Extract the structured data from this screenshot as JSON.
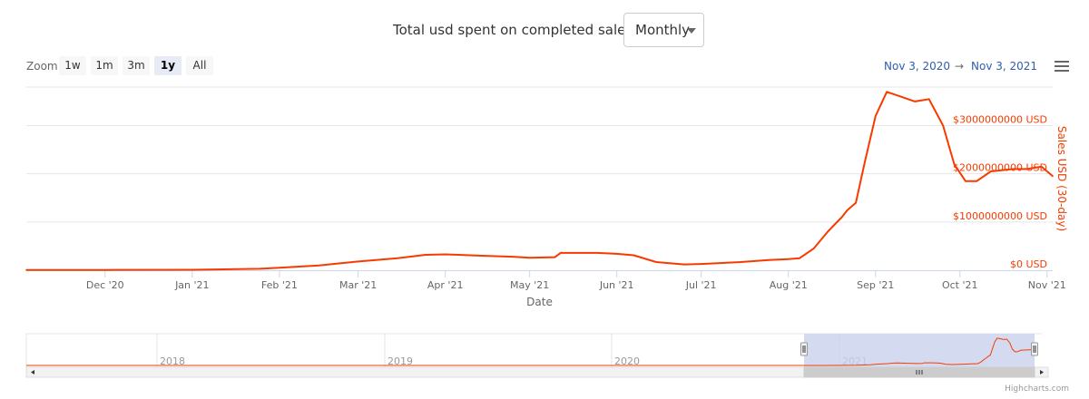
{
  "header": {
    "title": "Total usd spent on completed sales.",
    "period_selected": "Monthly"
  },
  "zoom": {
    "label": "Zoom",
    "buttons": [
      "1w",
      "1m",
      "3m",
      "1y",
      "All"
    ],
    "active": "1y"
  },
  "range": {
    "from": "Nov 3, 2020",
    "arrow": "→",
    "to": "Nov 3, 2021"
  },
  "credits": "Highcharts.com",
  "colors": {
    "series": "#f73b00",
    "navigator_mask": "#c9d2ec"
  },
  "chart_data": {
    "type": "line",
    "title": "Total usd spent on completed sales.",
    "xlabel": "Date",
    "ylabel": "Sales USD (30-day)",
    "y_axis_position": "right",
    "ylim": [
      0,
      3800000000
    ],
    "xlim": [
      "2020-11-03",
      "2021-11-03"
    ],
    "x_tick_labels": [
      "Dec '20",
      "Jan '21",
      "Feb '21",
      "Mar '21",
      "Apr '21",
      "May '21",
      "Jun '21",
      "Jul '21",
      "Aug '21",
      "Sep '21",
      "Oct '21",
      "Nov '21"
    ],
    "y_tick_labels": [
      "$0 USD",
      "$1000000000 USD",
      "$2000000000 USD",
      "$3000000000 USD"
    ],
    "y_ticks": [
      0,
      1000000000,
      2000000000,
      3000000000
    ],
    "grid": true,
    "series": [
      {
        "name": "Sales USD (30-day)",
        "x": [
          "2020-11-03",
          "2020-12-01",
          "2021-01-01",
          "2021-01-25",
          "2021-02-01",
          "2021-02-15",
          "2021-03-01",
          "2021-03-15",
          "2021-03-25",
          "2021-04-01",
          "2021-04-15",
          "2021-04-25",
          "2021-05-01",
          "2021-05-10",
          "2021-05-12",
          "2021-05-25",
          "2021-06-01",
          "2021-06-07",
          "2021-06-15",
          "2021-06-25",
          "2021-07-01",
          "2021-07-15",
          "2021-07-25",
          "2021-08-01",
          "2021-08-05",
          "2021-08-10",
          "2021-08-15",
          "2021-08-20",
          "2021-08-22",
          "2021-08-25",
          "2021-08-28",
          "2021-09-01",
          "2021-09-05",
          "2021-09-10",
          "2021-09-15",
          "2021-09-20",
          "2021-09-25",
          "2021-09-29",
          "2021-10-03",
          "2021-10-07",
          "2021-10-12",
          "2021-10-20",
          "2021-10-25",
          "2021-10-30",
          "2021-11-03"
        ],
        "values": [
          5000000,
          6000000,
          10000000,
          30000000,
          50000000,
          100000000,
          180000000,
          250000000,
          320000000,
          330000000,
          300000000,
          280000000,
          260000000,
          270000000,
          360000000,
          360000000,
          340000000,
          310000000,
          170000000,
          120000000,
          130000000,
          170000000,
          210000000,
          230000000,
          250000000,
          450000000,
          800000000,
          1100000000,
          1250000000,
          1400000000,
          2200000000,
          3200000000,
          3700000000,
          3600000000,
          3500000000,
          3550000000,
          3000000000,
          2200000000,
          1850000000,
          1850000000,
          2050000000,
          2100000000,
          2100000000,
          2150000000,
          1950000000
        ]
      }
    ],
    "navigator": {
      "x_tick_labels": [
        "2018",
        "2019",
        "2020",
        "2021"
      ]
    }
  }
}
